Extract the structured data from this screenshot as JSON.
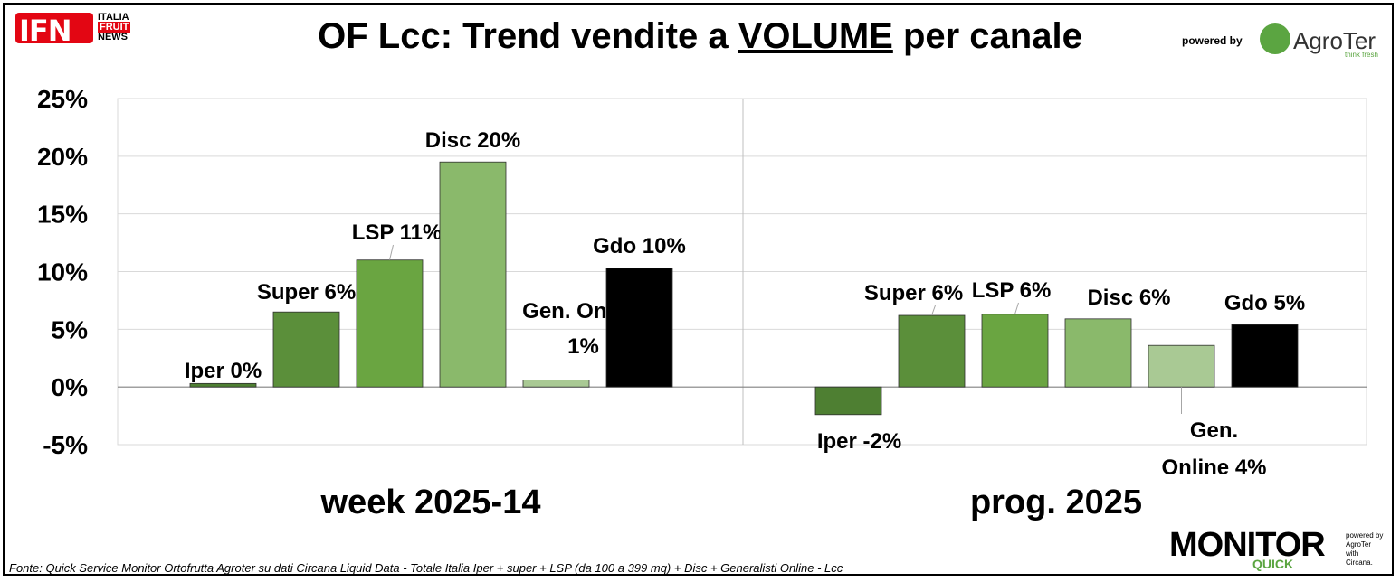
{
  "header": {
    "title_before": "OF Lcc: Trend vendite a ",
    "title_underlined": "VOLUME",
    "title_after": " per canale",
    "ifn_logo_text": "IFN",
    "ifn_sub_1": "ITALIA",
    "ifn_sub_2": "FRUIT",
    "ifn_sub_3": "NEWS",
    "powered_by": "powered by",
    "agroter_name": "AgroTer",
    "agroter_tagline": "think fresh"
  },
  "chart_data": {
    "type": "bar",
    "y_ticks": [
      "25%",
      "20%",
      "15%",
      "10%",
      "5%",
      "0%",
      "-5%"
    ],
    "ylim": [
      -5,
      25
    ],
    "grid": true,
    "colors": [
      "#4e7f32",
      "#5b8f3a",
      "#6aa541",
      "#8ab96b",
      "#a9c994",
      "#000000"
    ],
    "groups": [
      {
        "name": "week 2025-14",
        "bars": [
          {
            "channel": "Iper",
            "value": 0.3,
            "label": "Iper 0%"
          },
          {
            "channel": "Super",
            "value": 6.5,
            "label": "Super 6%"
          },
          {
            "channel": "LSP",
            "value": 11.0,
            "label": "LSP 11%"
          },
          {
            "channel": "Disc",
            "value": 19.5,
            "label": "Disc 20%"
          },
          {
            "channel": "Gen. Online",
            "value": 0.6,
            "label_line1": "Gen. Online",
            "label_line2": "1%"
          },
          {
            "channel": "Gdo",
            "value": 10.3,
            "label": "Gdo 10%"
          }
        ]
      },
      {
        "name": "prog. 2025",
        "bars": [
          {
            "channel": "Iper",
            "value": -2.4,
            "label": "Iper -2%"
          },
          {
            "channel": "Super",
            "value": 6.2,
            "label": "Super 6%"
          },
          {
            "channel": "LSP",
            "value": 6.3,
            "label": "LSP 6%"
          },
          {
            "channel": "Disc",
            "value": 5.9,
            "label": "Disc 6%"
          },
          {
            "channel": "Gen. Online",
            "value": 3.6,
            "label_line1": "Gen.",
            "label_line2": "Online 4%"
          },
          {
            "channel": "Gdo",
            "value": 5.4,
            "label": "Gdo 5%"
          }
        ]
      }
    ]
  },
  "footer": {
    "source": "Fonte: Quick Service Monitor Ortofrutta Agroter su dati Circana Liquid Data - Totale Italia Iper + super + LSP (da 100 a 399 mq) + Disc + Generalisti Online - Lcc",
    "monitor_text": "MONITOR",
    "quick_text": "QUICK",
    "side_1": "powered by",
    "side_2": "AgroTer",
    "side_3": "with",
    "side_4": "Circana."
  }
}
